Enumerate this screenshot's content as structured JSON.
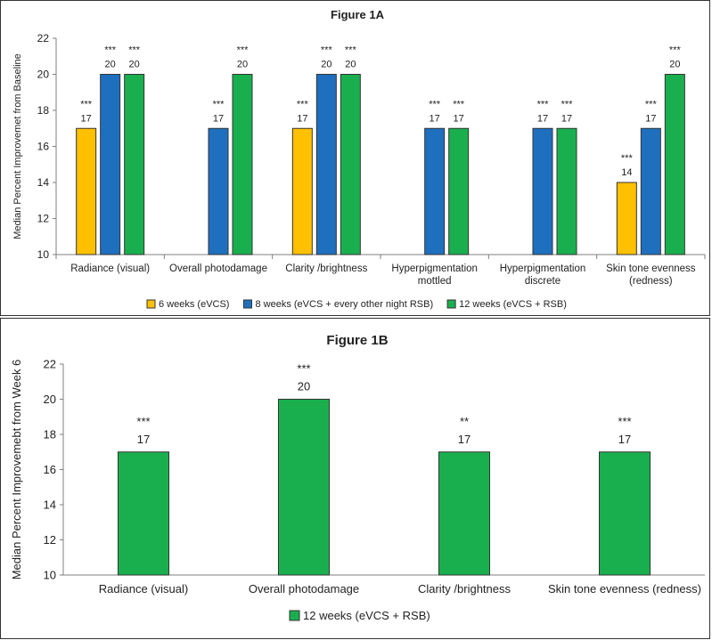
{
  "colors": {
    "orange": "#FFC000",
    "blue": "#1F6FBF",
    "green": "#1AAF4E",
    "axis": "#7F7F7F",
    "text": "#222222"
  },
  "chart_data": [
    {
      "type": "bar",
      "title": "Figure 1A",
      "ylabel": "Median Percent Improvemet from Baseline",
      "xlabel": "",
      "ylim": [
        10,
        22
      ],
      "yticks": [
        "10",
        "12",
        "14",
        "16",
        "18",
        "20",
        "22"
      ],
      "categories": [
        [
          "Radiance (visual)"
        ],
        [
          "Overall  photodamage"
        ],
        [
          "Clarity /brightness"
        ],
        [
          "Hyperpigmentation",
          "mottled"
        ],
        [
          "Hyperpigmentation",
          "discrete"
        ],
        [
          "Skin tone evenness",
          "(redness)"
        ]
      ],
      "series": [
        {
          "name": "6 weeks (eVCS)",
          "color": "#FFC000",
          "values": [
            17,
            null,
            17,
            null,
            null,
            14
          ],
          "labels": [
            "17",
            "",
            "17",
            "",
            "",
            "14"
          ],
          "significance": [
            "***",
            "",
            "***",
            "",
            "",
            "***"
          ]
        },
        {
          "name": "8 weeks (eVCS + every other night RSB)",
          "color": "#1F6FBF",
          "values": [
            20,
            17,
            20,
            17,
            17,
            17
          ],
          "labels": [
            "20",
            "17",
            "20",
            "17",
            "17",
            "17"
          ],
          "significance": [
            "***",
            "***",
            "***",
            "***",
            "***",
            "***"
          ]
        },
        {
          "name": "12 weeks (eVCS + RSB)",
          "color": "#1AAF4E",
          "values": [
            20,
            20,
            20,
            17,
            17,
            20
          ],
          "labels": [
            "20",
            "20",
            "20",
            "17",
            "17",
            "20"
          ],
          "significance": [
            "***",
            "***",
            "***",
            "***",
            "***",
            "***"
          ]
        }
      ],
      "legend_position": "bottom"
    },
    {
      "type": "bar",
      "title": "Figure 1B",
      "ylabel": "Median Percent Improvemebt from Week 6",
      "xlabel": "",
      "ylim": [
        10,
        22
      ],
      "yticks": [
        "10",
        "12",
        "14",
        "16",
        "18",
        "20",
        "22"
      ],
      "categories": [
        [
          "Radiance (visual)"
        ],
        [
          "Overall  photodamage"
        ],
        [
          "Clarity /brightness"
        ],
        [
          "Skin tone evenness (redness)"
        ]
      ],
      "series": [
        {
          "name": "12 weeks  (eVCS + RSB)",
          "color": "#1AAF4E",
          "values": [
            17,
            20,
            17,
            17
          ],
          "labels": [
            "17",
            "20",
            "17",
            "17"
          ],
          "significance": [
            "***",
            "***",
            "**",
            "***"
          ]
        }
      ],
      "legend_position": "bottom"
    }
  ]
}
